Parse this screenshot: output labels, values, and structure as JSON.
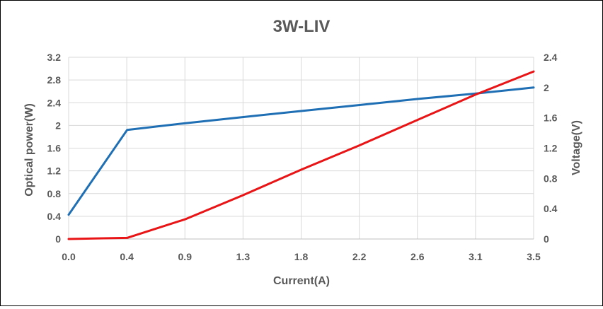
{
  "chart_data": {
    "type": "line",
    "title": "3W-LIV",
    "xlabel": "Current(A)",
    "ylabel": "Optical power(W)",
    "y2label": "Voltage(V)",
    "x_tick_labels": [
      "0.0",
      "0.4",
      "0.9",
      "1.3",
      "1.8",
      "2.2",
      "2.6",
      "3.1",
      "3.5"
    ],
    "y_ticks": [
      "0",
      "0.4",
      "0.8",
      "1.2",
      "1.6",
      "2",
      "2.4",
      "2.8",
      "3.2"
    ],
    "y2_ticks": [
      "0",
      "0.4",
      "0.8",
      "1.2",
      "1.6",
      "2",
      "2.4"
    ],
    "xlim": [
      0,
      3.5
    ],
    "ylim": [
      0,
      3.2
    ],
    "y2lim": [
      0,
      2.4
    ],
    "grid": true,
    "legend": "none",
    "series": [
      {
        "axis": "y2",
        "color": "#1f6fb5",
        "points": [
          [
            0.0,
            0.32
          ],
          [
            0.44,
            1.44
          ],
          [
            0.88,
            1.53
          ],
          [
            1.31,
            1.61
          ],
          [
            1.75,
            1.69
          ],
          [
            2.19,
            1.77
          ],
          [
            2.63,
            1.85
          ],
          [
            3.06,
            1.92
          ],
          [
            3.5,
            2.0
          ]
        ]
      },
      {
        "axis": "y",
        "color": "#e81416",
        "points": [
          [
            0.0,
            0.0
          ],
          [
            0.44,
            0.02
          ],
          [
            0.88,
            0.35
          ],
          [
            1.31,
            0.77
          ],
          [
            1.75,
            1.22
          ],
          [
            2.19,
            1.65
          ],
          [
            2.63,
            2.1
          ],
          [
            3.06,
            2.54
          ],
          [
            3.5,
            2.95
          ]
        ]
      }
    ]
  }
}
